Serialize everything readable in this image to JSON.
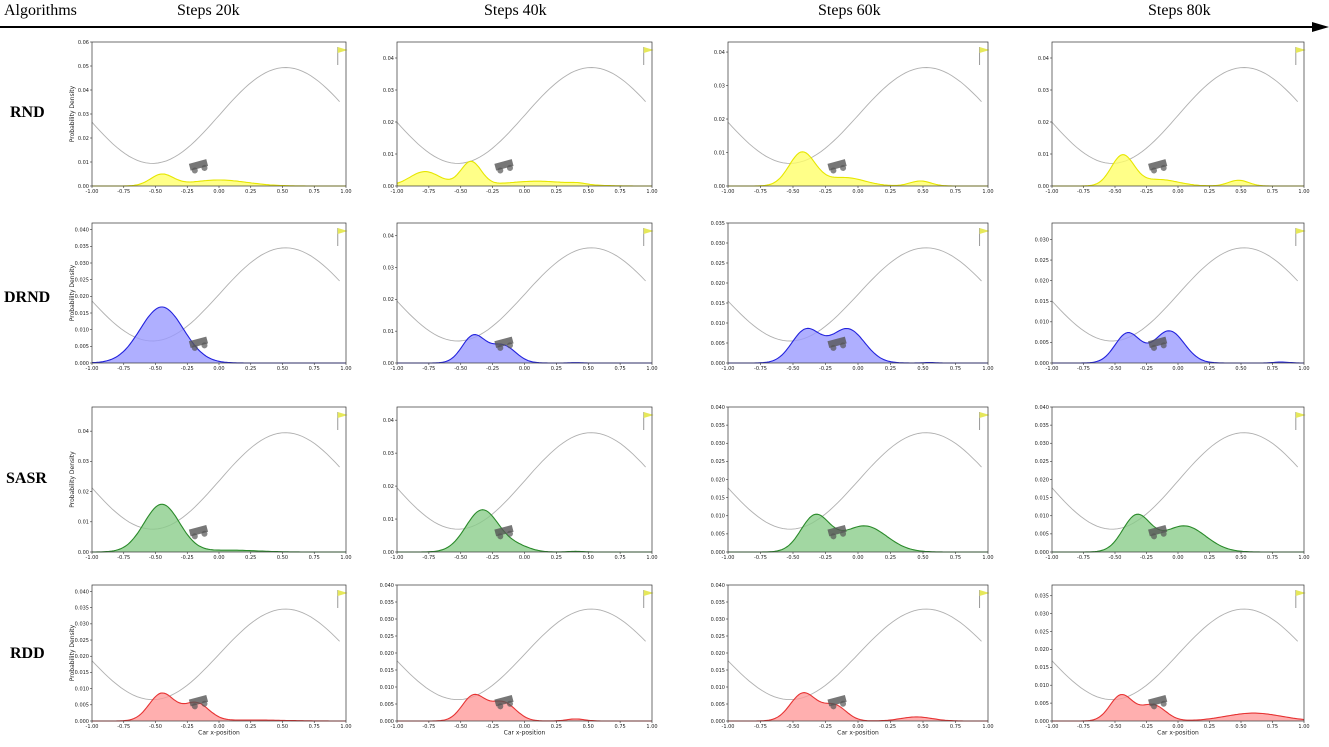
{
  "header": {
    "algorithms_label": "Algorithms",
    "steps": [
      "Steps 20k",
      "Steps 40k",
      "Steps 60k",
      "Steps 80k"
    ]
  },
  "colors": {
    "RND": {
      "fill": "#ffff66",
      "stroke": "#e6e600"
    },
    "DRND": {
      "fill": "#9999ff",
      "stroke": "#2222dd"
    },
    "SASR": {
      "fill": "#88cc88",
      "stroke": "#2a8a2a"
    },
    "RDD": {
      "fill": "#ff9999",
      "stroke": "#e63333"
    },
    "flag": "#e6e85a",
    "track": "#b0b0b0",
    "car": "#555555"
  },
  "chart_data": {
    "type": "area",
    "ylabel": "Probability Density",
    "xlabel": "Car x-position",
    "xlim": [
      -1.0,
      1.0
    ],
    "xticks": [
      "-1.00",
      "-0.75",
      "-0.50",
      "-0.25",
      "0.00",
      "0.25",
      "0.50",
      "0.75",
      "1.00"
    ],
    "xticks_last_col": [
      "-1.00",
      "-0.75",
      "-0.50",
      "-0.25",
      "0.00",
      "0.25",
      "0.50",
      "0.75",
      "1.00"
    ],
    "steps": [
      "20k",
      "40k",
      "60k",
      "80k"
    ],
    "rows": [
      {
        "algorithm": "RND",
        "panels": [
          {
            "ylim": [
              0,
              0.06
            ],
            "yticks": [
              "0.00",
              "0.01",
              "0.02",
              "0.03",
              "0.04",
              "0.05",
              "0.06"
            ],
            "components": [
              [
                -0.45,
                0.09,
                0.0047
              ],
              [
                0.0,
                0.22,
                0.0025
              ]
            ]
          },
          {
            "ylim": [
              0,
              0.045
            ],
            "yticks": [
              "0.00",
              "0.01",
              "0.02",
              "0.03",
              "0.04"
            ],
            "components": [
              [
                -0.42,
                0.08,
                0.0075
              ],
              [
                -0.78,
                0.12,
                0.0045
              ],
              [
                0.1,
                0.25,
                0.0015
              ],
              [
                0.42,
                0.06,
                0.0004
              ]
            ]
          },
          {
            "ylim": [
              0,
              0.043
            ],
            "yticks": [
              "0.00",
              "0.01",
              "0.02",
              "0.03",
              "0.04"
            ],
            "components": [
              [
                -0.43,
                0.1,
                0.01
              ],
              [
                -0.1,
                0.15,
                0.0025
              ],
              [
                0.48,
                0.08,
                0.0015
              ]
            ]
          },
          {
            "ylim": [
              0,
              0.045
            ],
            "yticks": [
              "0.00",
              "0.01",
              "0.02",
              "0.03",
              "0.04"
            ],
            "components": [
              [
                -0.44,
                0.09,
                0.0095
              ],
              [
                -0.15,
                0.15,
                0.002
              ],
              [
                0.48,
                0.08,
                0.0018
              ]
            ]
          }
        ]
      },
      {
        "algorithm": "DRND",
        "panels": [
          {
            "ylim": [
              0,
              0.042
            ],
            "yticks": [
              "0.000",
              "0.005",
              "0.010",
              "0.015",
              "0.020",
              "0.025",
              "0.030",
              "0.035",
              "0.040"
            ],
            "components": [
              [
                -0.45,
                0.17,
                0.0168
              ]
            ]
          },
          {
            "ylim": [
              0,
              0.044
            ],
            "yticks": [
              "0.00",
              "0.01",
              "0.02",
              "0.03",
              "0.04"
            ],
            "components": [
              [
                -0.4,
                0.09,
                0.0085
              ],
              [
                -0.17,
                0.1,
                0.0055
              ],
              [
                0.4,
                0.05,
                0.0001
              ]
            ]
          },
          {
            "ylim": [
              0,
              0.035
            ],
            "yticks": [
              "0.000",
              "0.005",
              "0.010",
              "0.015",
              "0.020",
              "0.025",
              "0.030",
              "0.035"
            ],
            "components": [
              [
                -0.4,
                0.11,
                0.0082
              ],
              [
                -0.08,
                0.13,
                0.0085
              ],
              [
                0.55,
                0.05,
                0.0001
              ]
            ]
          },
          {
            "ylim": [
              0,
              0.034
            ],
            "yticks": [
              "0.000",
              "0.005",
              "0.010",
              "0.015",
              "0.020",
              "0.025",
              "0.030"
            ],
            "components": [
              [
                -0.4,
                0.1,
                0.0072
              ],
              [
                -0.07,
                0.12,
                0.0078
              ],
              [
                0.82,
                0.06,
                0.00022
              ]
            ]
          }
        ]
      },
      {
        "algorithm": "SASR",
        "panels": [
          {
            "ylim": [
              0,
              0.048
            ],
            "yticks": [
              "0.00",
              "0.01",
              "0.02",
              "0.03",
              "0.04"
            ],
            "components": [
              [
                -0.45,
                0.14,
                0.0158
              ],
              [
                0.1,
                0.2,
                0.0006
              ]
            ]
          },
          {
            "ylim": [
              0,
              0.044
            ],
            "yticks": [
              "0.00",
              "0.01",
              "0.02",
              "0.03",
              "0.04"
            ],
            "components": [
              [
                -0.33,
                0.13,
                0.0128
              ],
              [
                -0.05,
                0.1,
                0.0015
              ],
              [
                0.4,
                0.06,
                0.0002
              ]
            ]
          },
          {
            "ylim": [
              0,
              0.04
            ],
            "yticks": [
              "0.000",
              "0.005",
              "0.010",
              "0.015",
              "0.020",
              "0.025",
              "0.030",
              "0.035",
              "0.040"
            ],
            "components": [
              [
                -0.33,
                0.11,
                0.0098
              ],
              [
                0.05,
                0.17,
                0.0072
              ]
            ]
          },
          {
            "ylim": [
              0,
              0.04
            ],
            "yticks": [
              "0.000",
              "0.005",
              "0.010",
              "0.015",
              "0.020",
              "0.025",
              "0.030",
              "0.035",
              "0.040"
            ],
            "components": [
              [
                -0.33,
                0.11,
                0.0098
              ],
              [
                0.05,
                0.17,
                0.0072
              ]
            ]
          }
        ]
      },
      {
        "algorithm": "RDD",
        "panels": [
          {
            "ylim": [
              0,
              0.042
            ],
            "yticks": [
              "0.000",
              "0.005",
              "0.010",
              "0.015",
              "0.020",
              "0.025",
              "0.030",
              "0.035",
              "0.040"
            ],
            "components": [
              [
                -0.45,
                0.1,
                0.0085
              ],
              [
                -0.18,
                0.1,
                0.0055
              ],
              [
                0.25,
                0.25,
                0.0003
              ]
            ]
          },
          {
            "ylim": [
              0,
              0.04
            ],
            "yticks": [
              "0.000",
              "0.005",
              "0.010",
              "0.015",
              "0.020",
              "0.025",
              "0.030",
              "0.035",
              "0.040"
            ],
            "components": [
              [
                -0.4,
                0.09,
                0.0074
              ],
              [
                -0.17,
                0.1,
                0.0055
              ],
              [
                0.4,
                0.07,
                0.0006
              ]
            ]
          },
          {
            "ylim": [
              0,
              0.04
            ],
            "yticks": [
              "0.000",
              "0.005",
              "0.010",
              "0.015",
              "0.020",
              "0.025",
              "0.030",
              "0.035",
              "0.040"
            ],
            "components": [
              [
                -0.42,
                0.1,
                0.0082
              ],
              [
                -0.18,
                0.09,
                0.0045
              ],
              [
                0.45,
                0.12,
                0.0012
              ]
            ]
          },
          {
            "ylim": [
              0,
              0.038
            ],
            "yticks": [
              "0.000",
              "0.005",
              "0.010",
              "0.015",
              "0.020",
              "0.025",
              "0.030",
              "0.035"
            ],
            "components": [
              [
                -0.45,
                0.09,
                0.0072
              ],
              [
                -0.2,
                0.1,
                0.0045
              ],
              [
                0.6,
                0.22,
                0.0022
              ]
            ]
          }
        ]
      }
    ]
  }
}
